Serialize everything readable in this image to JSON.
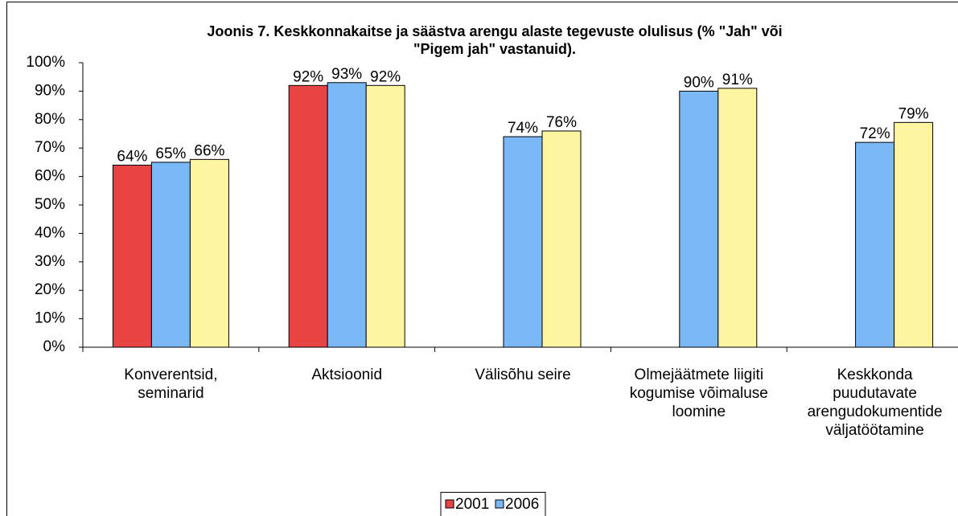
{
  "chart_data": {
    "type": "bar",
    "title": "Joonis 7. Keskkonnakaitse ja säästva arengu alaste tegevuste olulisus (% \"Jah\" või\n\"Pigem jah\" vastanuid).",
    "categories": [
      "Konverentsid,\nseminarid",
      "Aktsioonid",
      "Välisõhu seire",
      "Olmejäätmete liigiti\nkogumise võimaluse\nloomine",
      "Keskkonda\npuudutavate\narengudokumentide\nväljatöötamine"
    ],
    "series": [
      {
        "name": "2001",
        "color": "#e84444",
        "values": [
          64,
          92,
          null,
          null,
          null
        ],
        "value_labels": [
          "64%",
          "92%",
          null,
          null,
          null
        ]
      },
      {
        "name": "2006",
        "color": "#7ab8f7",
        "values": [
          65,
          93,
          74,
          90,
          72
        ],
        "value_labels": [
          "65%",
          "93%",
          "74%",
          "90%",
          "72%"
        ]
      },
      {
        "color": "#fdf5a0",
        "values": [
          66,
          92,
          76,
          91,
          79
        ],
        "value_labels": [
          "66%",
          "92%",
          "76%",
          "91%",
          "79%"
        ]
      }
    ],
    "ylim": [
      0,
      100
    ],
    "yticks": [
      {
        "value": 0,
        "label": "0%"
      },
      {
        "value": 10,
        "label": "10%"
      },
      {
        "value": 20,
        "label": "20%"
      },
      {
        "value": 30,
        "label": "30%"
      },
      {
        "value": 40,
        "label": "40%"
      },
      {
        "value": 50,
        "label": "50%"
      },
      {
        "value": 60,
        "label": "60%"
      },
      {
        "value": 70,
        "label": "70%"
      },
      {
        "value": 80,
        "label": "80%"
      },
      {
        "value": 90,
        "label": "90%"
      },
      {
        "value": 100,
        "label": "100%"
      }
    ],
    "grid": false,
    "legend": "bottom"
  }
}
